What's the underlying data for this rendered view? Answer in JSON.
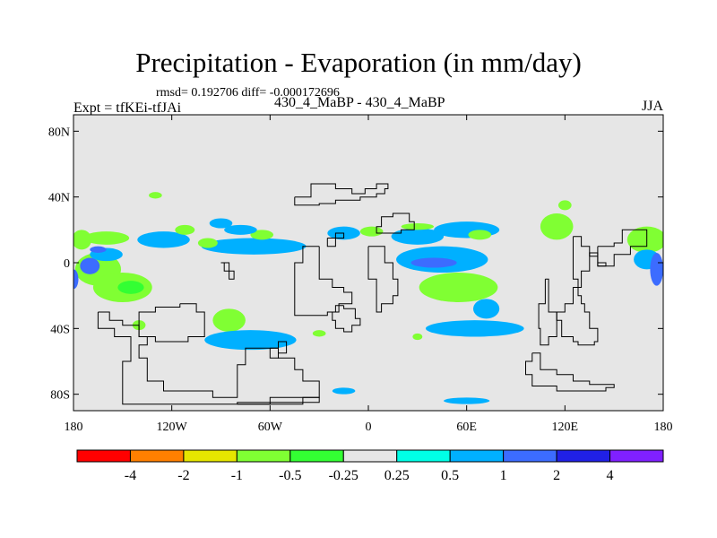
{
  "chart_data": {
    "type": "heatmap",
    "title": "Precipitation - Evaporation (in mm/day)",
    "stats_line": "rmsd= 0.192706 diff= -0.000172696",
    "left_label": "Expt = tfKEi-tfJAi",
    "center_label": "430_4_MaBP - 430_4_MaBP",
    "right_label": "JJA",
    "background_color": "#e6e6e6",
    "xlim": [
      -180,
      180
    ],
    "ylim": [
      -90,
      90
    ],
    "x_ticks": [
      {
        "value": -180,
        "label": "180"
      },
      {
        "value": -120,
        "label": "120W"
      },
      {
        "value": -60,
        "label": "60W"
      },
      {
        "value": 0,
        "label": "0"
      },
      {
        "value": 60,
        "label": "60E"
      },
      {
        "value": 120,
        "label": "120E"
      },
      {
        "value": 180,
        "label": "180"
      }
    ],
    "y_ticks": [
      {
        "value": 80,
        "label": "80N"
      },
      {
        "value": 40,
        "label": "40N"
      },
      {
        "value": 0,
        "label": "0"
      },
      {
        "value": -40,
        "label": "40S"
      },
      {
        "value": -80,
        "label": "80S"
      }
    ],
    "colorbar": {
      "colors": [
        "#ff0000",
        "#ff8000",
        "#e6e600",
        "#80ff33",
        "#33ff33",
        "#e6e6e6",
        "#00ffe6",
        "#00b0ff",
        "#3c6cff",
        "#2020e6",
        "#8020ff"
      ],
      "labels": [
        "-4",
        "-2",
        "-1",
        "-0.5",
        "-0.25",
        "0.25",
        "0.5",
        "1",
        "2",
        "4"
      ]
    },
    "fields": [
      {
        "lon": -175,
        "lat": 14,
        "rx": 6,
        "ry": 6,
        "level": "-0.5"
      },
      {
        "lon": -160,
        "lat": 15,
        "rx": 14,
        "ry": 4,
        "level": "-0.5"
      },
      {
        "lon": -125,
        "lat": 14,
        "rx": 16,
        "ry": 5,
        "level": "0.5"
      },
      {
        "lon": -70,
        "lat": 10,
        "rx": 32,
        "ry": 5,
        "level": "0.5"
      },
      {
        "lon": -90,
        "lat": 24,
        "rx": 7,
        "ry": 3,
        "level": "0.5"
      },
      {
        "lon": -130,
        "lat": 41,
        "rx": 4,
        "ry": 2,
        "level": "-0.5"
      },
      {
        "lon": -98,
        "lat": 12,
        "rx": 6,
        "ry": 3,
        "level": "-0.5"
      },
      {
        "lon": -112,
        "lat": 20,
        "rx": 6,
        "ry": 3,
        "level": "-0.5"
      },
      {
        "lon": -65,
        "lat": 17,
        "rx": 7,
        "ry": 3,
        "level": "-0.5"
      },
      {
        "lon": -78,
        "lat": 20,
        "rx": 10,
        "ry": 3,
        "level": "0.5"
      },
      {
        "lon": -15,
        "lat": 18,
        "rx": 10,
        "ry": 4,
        "level": "0.5"
      },
      {
        "lon": 2,
        "lat": 19,
        "rx": 7,
        "ry": 3,
        "level": "-0.5"
      },
      {
        "lon": 30,
        "lat": 16,
        "rx": 16,
        "ry": 5,
        "level": "0.5"
      },
      {
        "lon": 30,
        "lat": 22,
        "rx": 10,
        "ry": 2,
        "level": "-0.5"
      },
      {
        "lon": 60,
        "lat": 20,
        "rx": 20,
        "ry": 5,
        "level": "0.5"
      },
      {
        "lon": 68,
        "lat": 17,
        "rx": 7,
        "ry": 3,
        "level": "-0.5"
      },
      {
        "lon": 45,
        "lat": 2,
        "rx": 28,
        "ry": 8,
        "level": "0.5"
      },
      {
        "lon": 40,
        "lat": 0,
        "rx": 14,
        "ry": 3,
        "level": "1"
      },
      {
        "lon": 55,
        "lat": -15,
        "rx": 24,
        "ry": 9,
        "level": "-0.5"
      },
      {
        "lon": 72,
        "lat": -28,
        "rx": 8,
        "ry": 6,
        "level": "0.5"
      },
      {
        "lon": 65,
        "lat": -40,
        "rx": 30,
        "ry": 5,
        "level": "0.5"
      },
      {
        "lon": 115,
        "lat": 22,
        "rx": 10,
        "ry": 8,
        "level": "-0.5"
      },
      {
        "lon": 120,
        "lat": 35,
        "rx": 4,
        "ry": 3,
        "level": "-0.5"
      },
      {
        "lon": 170,
        "lat": 14,
        "rx": 12,
        "ry": 8,
        "level": "-0.5"
      },
      {
        "lon": 170,
        "lat": 2,
        "rx": 8,
        "ry": 6,
        "level": "0.5"
      },
      {
        "lon": 176,
        "lat": -4,
        "rx": 4,
        "ry": 10,
        "level": "1"
      },
      {
        "lon": -165,
        "lat": -4,
        "rx": 14,
        "ry": 10,
        "level": "-0.5"
      },
      {
        "lon": -170,
        "lat": -2,
        "rx": 6,
        "ry": 5,
        "level": "1"
      },
      {
        "lon": -150,
        "lat": -15,
        "rx": 18,
        "ry": 9,
        "level": "-0.5"
      },
      {
        "lon": -145,
        "lat": -15,
        "rx": 8,
        "ry": 4,
        "level": "-0.25"
      },
      {
        "lon": -160,
        "lat": 5,
        "rx": 10,
        "ry": 4,
        "level": "0.5"
      },
      {
        "lon": -165,
        "lat": 8,
        "rx": 5,
        "ry": 2,
        "level": "1"
      },
      {
        "lon": -85,
        "lat": -35,
        "rx": 10,
        "ry": 7,
        "level": "-0.5"
      },
      {
        "lon": -72,
        "lat": -47,
        "rx": 28,
        "ry": 6,
        "level": "0.5"
      },
      {
        "lon": -30,
        "lat": -43,
        "rx": 4,
        "ry": 2,
        "level": "-0.5"
      },
      {
        "lon": 30,
        "lat": -45,
        "rx": 3,
        "ry": 2,
        "level": "-0.5"
      },
      {
        "lon": -140,
        "lat": -38,
        "rx": 4,
        "ry": 3,
        "level": "-0.5"
      },
      {
        "lon": -180,
        "lat": -10,
        "rx": 3,
        "ry": 6,
        "level": "1"
      },
      {
        "lon": -15,
        "lat": -78,
        "rx": 7,
        "ry": 2,
        "level": "0.5"
      },
      {
        "lon": 60,
        "lat": -84,
        "rx": 14,
        "ry": 2,
        "level": "0.5"
      }
    ],
    "coastlines": [
      [
        [
          -115,
          -25
        ],
        [
          -105,
          -30
        ],
        [
          -100,
          -38
        ],
        [
          -100,
          -45
        ],
        [
          -110,
          -48
        ],
        [
          -130,
          -45
        ],
        [
          -140,
          -30
        ],
        [
          -130,
          -27
        ],
        [
          -115,
          -25
        ]
      ],
      [
        [
          -165,
          -30
        ],
        [
          -158,
          -35
        ],
        [
          -150,
          -38
        ],
        [
          -145,
          -38
        ],
        [
          -140,
          -45
        ],
        [
          -135,
          -50
        ],
        [
          -140,
          -58
        ],
        [
          -135,
          -65
        ],
        [
          -135,
          -72
        ],
        [
          -125,
          -78
        ],
        [
          -95,
          -82
        ],
        [
          -80,
          -76
        ],
        [
          -80,
          -62
        ],
        [
          -75,
          -52
        ],
        [
          -68,
          -52
        ],
        [
          -60,
          -52
        ],
        [
          -55,
          -58
        ],
        [
          -45,
          -65
        ],
        [
          -40,
          -72
        ],
        [
          -30,
          -75
        ],
        [
          -30,
          -82
        ],
        [
          -60,
          -86
        ],
        [
          -100,
          -86
        ],
        [
          -140,
          -86
        ],
        [
          -150,
          -80
        ],
        [
          -150,
          -60
        ],
        [
          -145,
          -45
        ],
        [
          -155,
          -40
        ],
        [
          -165,
          -30
        ]
      ],
      [
        [
          -60,
          -52
        ],
        [
          -55,
          -48
        ],
        [
          -50,
          -55
        ],
        [
          -55,
          -58
        ],
        [
          -60,
          -52
        ]
      ],
      [
        [
          -80,
          -86
        ],
        [
          -40,
          -82
        ],
        [
          -30,
          -82
        ],
        [
          -30,
          -85
        ],
        [
          -80,
          -86
        ]
      ],
      [
        [
          -15,
          -26
        ],
        [
          -20,
          -30
        ],
        [
          -22,
          -35
        ],
        [
          -20,
          -40
        ],
        [
          -15,
          -42
        ],
        [
          -10,
          -38
        ],
        [
          -5,
          -34
        ],
        [
          -8,
          -28
        ],
        [
          -15,
          -26
        ]
      ],
      [
        [
          -30,
          10
        ],
        [
          -30,
          -10
        ],
        [
          -22,
          -15
        ],
        [
          -15,
          -18
        ],
        [
          -10,
          -25
        ],
        [
          -18,
          -30
        ],
        [
          -25,
          -32
        ],
        [
          -40,
          -32
        ],
        [
          -45,
          -20
        ],
        [
          -45,
          0
        ],
        [
          -40,
          10
        ],
        [
          -30,
          10
        ]
      ],
      [
        [
          -25,
          15
        ],
        [
          -20,
          18
        ],
        [
          -15,
          15
        ],
        [
          -20,
          10
        ],
        [
          -25,
          15
        ]
      ],
      [
        [
          -45,
          40
        ],
        [
          -35,
          48
        ],
        [
          -20,
          45
        ],
        [
          -10,
          42
        ],
        [
          -2,
          45
        ],
        [
          5,
          48
        ],
        [
          12,
          45
        ],
        [
          10,
          42
        ],
        [
          5,
          40
        ],
        [
          -5,
          38
        ],
        [
          -10,
          38
        ],
        [
          -20,
          36
        ],
        [
          -30,
          35
        ],
        [
          -42,
          35
        ],
        [
          -45,
          40
        ]
      ],
      [
        [
          0,
          10
        ],
        [
          10,
          0
        ],
        [
          15,
          -10
        ],
        [
          18,
          -20
        ],
        [
          15,
          -25
        ],
        [
          8,
          -30
        ],
        [
          5,
          -20
        ],
        [
          5,
          -10
        ],
        [
          0,
          10
        ]
      ],
      [
        [
          20,
          30
        ],
        [
          25,
          25
        ],
        [
          28,
          20
        ],
        [
          20,
          18
        ],
        [
          10,
          18
        ],
        [
          5,
          22
        ],
        [
          8,
          28
        ],
        [
          15,
          30
        ],
        [
          20,
          30
        ]
      ],
      [
        [
          -90,
          0
        ],
        [
          -88,
          -5
        ],
        [
          -85,
          -10
        ],
        [
          -82,
          -5
        ],
        [
          -85,
          0
        ],
        [
          -90,
          0
        ]
      ],
      [
        [
          125,
          16
        ],
        [
          130,
          10
        ],
        [
          135,
          -5
        ],
        [
          130,
          -15
        ],
        [
          125,
          -25
        ],
        [
          120,
          -30
        ],
        [
          115,
          -35
        ],
        [
          118,
          -45
        ],
        [
          125,
          -48
        ],
        [
          128,
          -50
        ],
        [
          138,
          -48
        ],
        [
          140,
          -40
        ],
        [
          135,
          -30
        ],
        [
          132,
          -25
        ],
        [
          130,
          -20
        ],
        [
          128,
          -10
        ],
        [
          125,
          0
        ],
        [
          125,
          16
        ]
      ],
      [
        [
          140,
          10
        ],
        [
          150,
          12
        ],
        [
          155,
          20
        ],
        [
          165,
          20
        ],
        [
          170,
          15
        ],
        [
          170,
          10
        ],
        [
          160,
          5
        ],
        [
          150,
          -2
        ],
        [
          140,
          5
        ],
        [
          140,
          10
        ]
      ],
      [
        [
          108,
          -10
        ],
        [
          110,
          -30
        ],
        [
          115,
          -45
        ],
        [
          110,
          -50
        ],
        [
          105,
          -40
        ],
        [
          104,
          -25
        ],
        [
          108,
          -10
        ]
      ],
      [
        [
          100,
          -55
        ],
        [
          105,
          -65
        ],
        [
          115,
          -68
        ],
        [
          125,
          -72
        ],
        [
          135,
          -74
        ],
        [
          150,
          -76
        ],
        [
          145,
          -78
        ],
        [
          130,
          -78
        ],
        [
          115,
          -75
        ],
        [
          100,
          -68
        ],
        [
          96,
          -60
        ],
        [
          100,
          -55
        ]
      ],
      [
        [
          135,
          4
        ],
        [
          140,
          -2
        ],
        [
          145,
          0
        ],
        [
          140,
          6
        ],
        [
          135,
          4
        ]
      ]
    ]
  }
}
